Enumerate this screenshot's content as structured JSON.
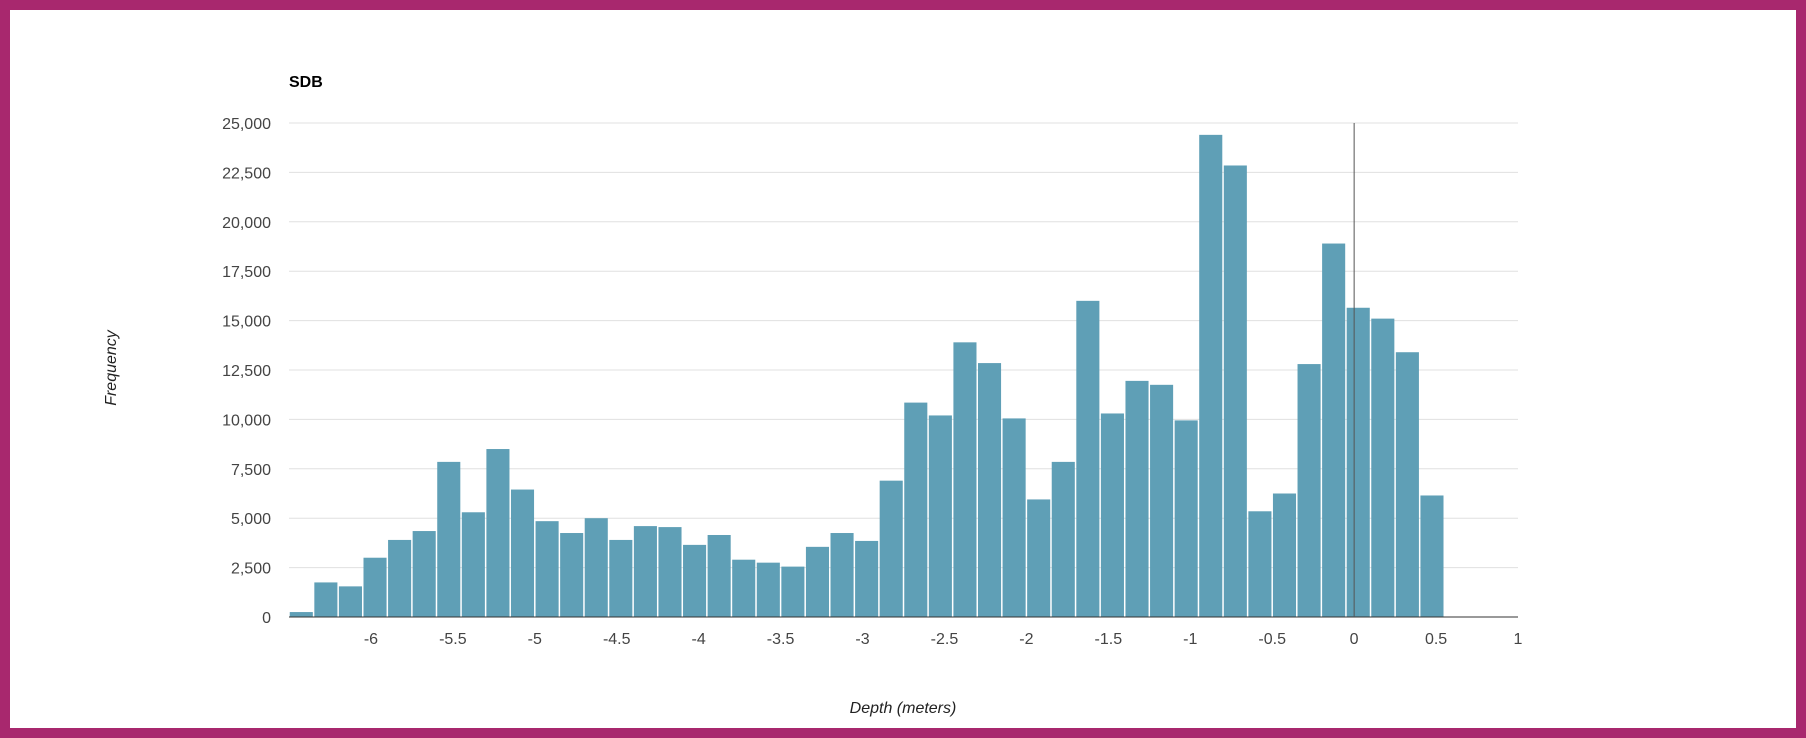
{
  "colors": {
    "frame": "#a8286e",
    "bar": "#5f9fb6",
    "grid": "#e0e0e0",
    "baseline": "#333333",
    "marker": "#555555"
  },
  "chart_data": {
    "type": "bar",
    "title": "SDB",
    "xlabel": "Depth (meters)",
    "ylabel": "Frequency",
    "bin_width": 0.15,
    "first_bin_start": -6.5,
    "xlim": [
      -6.5,
      1
    ],
    "ylim": [
      0,
      25000
    ],
    "x_ticks": [
      -6,
      -5.5,
      -5,
      -4.5,
      -4,
      -3.5,
      -3,
      -2.5,
      -2,
      -1.5,
      -1,
      -0.5,
      0,
      0.5,
      1
    ],
    "x_tick_labels": [
      "-6",
      "-5.5",
      "-5",
      "-4.5",
      "-4",
      "-3.5",
      "-3",
      "-2.5",
      "-2",
      "-1.5",
      "-1",
      "-0.5",
      "0",
      "0.5",
      "1"
    ],
    "y_ticks": [
      0,
      2500,
      5000,
      7500,
      10000,
      12500,
      15000,
      17500,
      20000,
      22500,
      25000
    ],
    "y_tick_labels": [
      "0",
      "2,500",
      "5,000",
      "7,500",
      "10,000",
      "12,500",
      "15,000",
      "17,500",
      "20,000",
      "22,500",
      "25,000"
    ],
    "reference_line_x": 0,
    "grid": true,
    "legend": "none",
    "values": [
      250,
      1750,
      1550,
      3000,
      3900,
      4350,
      7850,
      5300,
      8500,
      6450,
      4850,
      4250,
      5000,
      3900,
      4600,
      4550,
      3650,
      4150,
      2900,
      2750,
      2550,
      3550,
      4250,
      3850,
      6900,
      10850,
      10200,
      13900,
      12850,
      10050,
      5950,
      7850,
      16000,
      10300,
      11950,
      11750,
      9950,
      24400,
      22850,
      5350,
      6250,
      12800,
      18900,
      15650,
      15100,
      13400,
      6150
    ]
  }
}
